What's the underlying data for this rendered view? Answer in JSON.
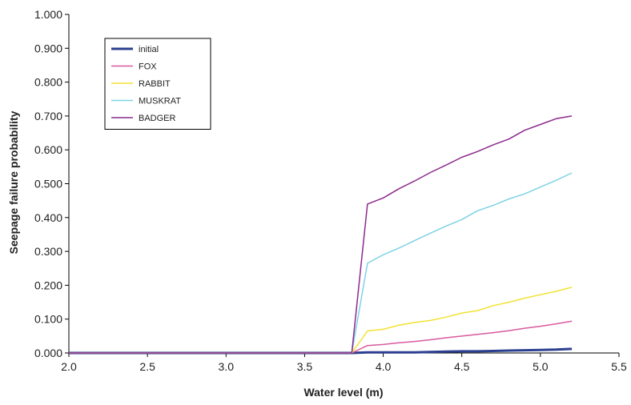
{
  "chart_data": {
    "type": "line",
    "title": "",
    "xlabel": "Water level (m)",
    "ylabel": "Seepage failure probability",
    "xlim": [
      2.0,
      5.5
    ],
    "ylim": [
      0.0,
      1.0
    ],
    "xticks": [
      "2.0",
      "2.5",
      "3.0",
      "3.5",
      "4.0",
      "4.5",
      "5.0",
      "5.5"
    ],
    "yticks": [
      "0.000",
      "0.100",
      "0.200",
      "0.300",
      "0.400",
      "0.500",
      "0.600",
      "0.700",
      "0.800",
      "0.900",
      "1.000"
    ],
    "grid": false,
    "legend_position": "top-left",
    "series": [
      {
        "name": "initial",
        "color": "#2b3f8f",
        "x": [
          2.0,
          3.8,
          3.9,
          4.0,
          4.1,
          4.2,
          4.3,
          4.4,
          4.5,
          4.6,
          4.7,
          4.8,
          4.9,
          5.0,
          5.1,
          5.2
        ],
        "y": [
          0.0,
          0.0,
          0.002,
          0.002,
          0.002,
          0.002,
          0.003,
          0.004,
          0.005,
          0.005,
          0.006,
          0.007,
          0.008,
          0.009,
          0.01,
          0.012
        ]
      },
      {
        "name": "FOX",
        "color": "#d85a9e",
        "x": [
          2.0,
          3.8,
          3.9,
          4.0,
          4.1,
          4.2,
          4.3,
          4.4,
          4.5,
          4.6,
          4.7,
          4.8,
          4.9,
          5.0,
          5.1,
          5.2
        ],
        "y": [
          0.0,
          0.0,
          0.022,
          0.025,
          0.03,
          0.034,
          0.039,
          0.045,
          0.05,
          0.055,
          0.06,
          0.066,
          0.073,
          0.079,
          0.086,
          0.094
        ]
      },
      {
        "name": "RABBIT",
        "color": "#f2e233",
        "x": [
          2.0,
          3.8,
          3.9,
          4.0,
          4.1,
          4.2,
          4.3,
          4.4,
          4.5,
          4.6,
          4.7,
          4.8,
          4.9,
          5.0,
          5.1,
          5.2
        ],
        "y": [
          0.0,
          0.0,
          0.065,
          0.07,
          0.082,
          0.09,
          0.096,
          0.106,
          0.118,
          0.125,
          0.14,
          0.15,
          0.162,
          0.172,
          0.182,
          0.194
        ]
      },
      {
        "name": "MUSKRAT",
        "color": "#7fd3e4",
        "x": [
          2.0,
          3.8,
          3.9,
          4.0,
          4.1,
          4.2,
          4.3,
          4.4,
          4.5,
          4.6,
          4.7,
          4.8,
          4.9,
          5.0,
          5.1,
          5.2
        ],
        "y": [
          0.0,
          0.0,
          0.265,
          0.29,
          0.31,
          0.332,
          0.354,
          0.375,
          0.394,
          0.42,
          0.436,
          0.455,
          0.47,
          0.49,
          0.51,
          0.532
        ]
      },
      {
        "name": "BADGER",
        "color": "#8c2a8c",
        "x": [
          2.0,
          3.8,
          3.9,
          4.0,
          4.1,
          4.2,
          4.3,
          4.4,
          4.5,
          4.6,
          4.7,
          4.8,
          4.9,
          5.0,
          5.1,
          5.2
        ],
        "y": [
          0.0,
          0.0,
          0.44,
          0.458,
          0.485,
          0.508,
          0.533,
          0.555,
          0.578,
          0.595,
          0.615,
          0.632,
          0.658,
          0.675,
          0.692,
          0.7
        ]
      }
    ]
  }
}
